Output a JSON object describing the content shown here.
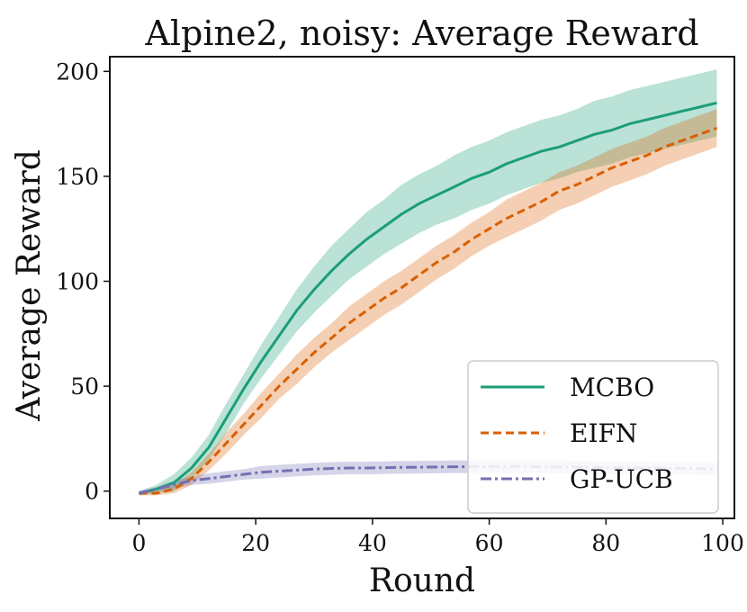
{
  "chart_data": {
    "type": "line",
    "title": "Alpine2, noisy: Average Reward",
    "xlabel": "Round",
    "ylabel": "Average Reward",
    "xlim": [
      -5,
      102
    ],
    "ylim": [
      -13,
      207
    ],
    "xticks": [
      0,
      20,
      40,
      60,
      80,
      100
    ],
    "yticks": [
      0,
      50,
      100,
      150,
      200
    ],
    "grid": false,
    "legend_position": "lower-right",
    "series": [
      {
        "name": "MCBO",
        "color": "#1b9e77",
        "dash": "solid",
        "x": [
          0,
          3,
          6,
          9,
          12,
          15,
          18,
          21,
          24,
          27,
          30,
          33,
          36,
          39,
          42,
          45,
          48,
          51,
          54,
          57,
          60,
          63,
          66,
          69,
          72,
          75,
          78,
          81,
          84,
          87,
          90,
          93,
          96,
          99
        ],
        "y": [
          -1,
          1,
          4,
          11,
          21,
          35,
          49,
          62,
          74,
          86,
          96,
          105,
          113,
          120,
          126,
          132,
          137,
          141,
          145,
          149,
          152,
          156,
          159,
          162,
          164,
          167,
          170,
          172,
          175,
          177,
          179,
          181,
          183,
          185
        ],
        "band_width": [
          1,
          2,
          4,
          5,
          6,
          7,
          7,
          8,
          9,
          10,
          11,
          12,
          12,
          13,
          13,
          14,
          14,
          14,
          15,
          15,
          15,
          15,
          15,
          15,
          15,
          15,
          16,
          16,
          16,
          16,
          16,
          16,
          16,
          16
        ]
      },
      {
        "name": "EIFN",
        "color": "#d95f02",
        "dash": "dashed",
        "x": [
          0,
          3,
          6,
          9,
          12,
          15,
          18,
          21,
          24,
          27,
          30,
          33,
          36,
          39,
          42,
          45,
          48,
          51,
          54,
          57,
          60,
          63,
          66,
          69,
          72,
          75,
          78,
          81,
          84,
          87,
          90,
          93,
          96,
          99
        ],
        "y": [
          -1,
          -1,
          1,
          6,
          14,
          23,
          32,
          41,
          50,
          58,
          66,
          73,
          80,
          86,
          92,
          97,
          103,
          109,
          114,
          120,
          125,
          130,
          134,
          138,
          143,
          146,
          150,
          154,
          157,
          160,
          164,
          167,
          170,
          173
        ],
        "band_width": [
          1,
          1,
          2,
          3,
          4,
          5,
          5,
          6,
          6,
          7,
          7,
          7,
          8,
          8,
          8,
          8,
          8,
          8,
          8,
          8,
          8,
          9,
          9,
          9,
          9,
          9,
          9,
          9,
          9,
          9,
          9,
          9,
          9,
          9
        ]
      },
      {
        "name": "GP-UCB",
        "color": "#7570b3",
        "dash": "dashdot",
        "x": [
          0,
          3,
          6,
          9,
          12,
          15,
          18,
          21,
          24,
          27,
          30,
          33,
          36,
          39,
          42,
          45,
          48,
          51,
          54,
          57,
          60,
          63,
          66,
          69,
          72,
          75,
          78,
          81,
          84,
          87,
          90,
          93,
          96,
          99
        ],
        "y": [
          -1,
          1,
          3,
          5,
          6,
          7,
          8,
          9,
          9.5,
          10,
          10.5,
          10.8,
          11,
          11,
          11.2,
          11.3,
          11.4,
          11.5,
          11.6,
          11.6,
          11.7,
          11.7,
          11.7,
          11.6,
          11.5,
          11.4,
          11.3,
          11.2,
          11.1,
          11,
          10.9,
          10.8,
          10.7,
          10.6
        ],
        "band_width": [
          1,
          1,
          2,
          2,
          2.5,
          2.5,
          2.5,
          3,
          3,
          3,
          3,
          3,
          3,
          3,
          3,
          3,
          3,
          3,
          3,
          3,
          3,
          3,
          3,
          3,
          3,
          3,
          3,
          3,
          3,
          3,
          3,
          3,
          3,
          3
        ]
      }
    ]
  }
}
